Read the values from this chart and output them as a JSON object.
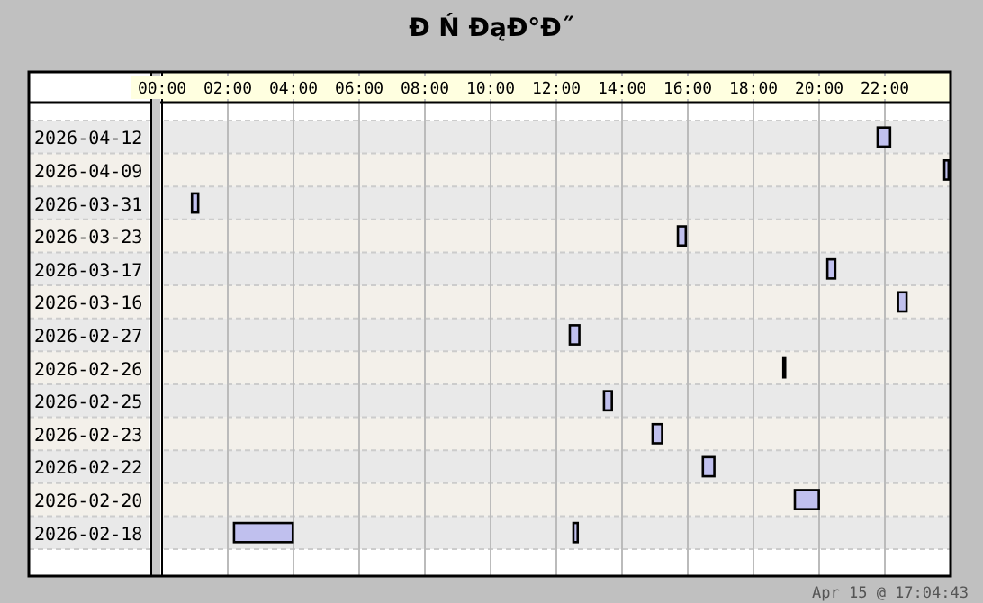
{
  "chart_data": {
    "type": "bar",
    "orientation": "horizontal",
    "title": "Ð Ń ÐąÐ°Ð˝",
    "categories": [
      "2026-04-12",
      "2026-04-09",
      "2026-03-31",
      "2026-03-23",
      "2026-03-17",
      "2026-03-16",
      "2026-02-27",
      "2026-02-26",
      "2026-02-25",
      "2026-02-23",
      "2026-02-22",
      "2026-02-20",
      "2026-02-18"
    ],
    "series": [
      {
        "color": "#c0c0ee",
        "base": [
          21.78,
          23.81,
          0.91,
          15.7,
          20.25,
          22.4,
          12.41,
          18.91,
          13.45,
          14.93,
          16.46,
          19.26,
          2.19
        ],
        "values": [
          0.38,
          0.13,
          0.19,
          0.24,
          0.24,
          0.26,
          0.29,
          0.04,
          0.24,
          0.29,
          0.35,
          0.73,
          1.79
        ]
      },
      {
        "color": "#c0c0ee",
        "base": [
          null,
          null,
          null,
          null,
          null,
          null,
          null,
          null,
          null,
          null,
          null,
          null,
          12.52
        ],
        "values": [
          null,
          null,
          null,
          null,
          null,
          null,
          null,
          null,
          null,
          null,
          null,
          null,
          0.13
        ]
      }
    ],
    "xlim": [
      0,
      24
    ],
    "xticks": [
      {
        "value": 0,
        "label": "00:00"
      },
      {
        "value": 2,
        "label": "02:00"
      },
      {
        "value": 4,
        "label": "04:00"
      },
      {
        "value": 6,
        "label": "06:00"
      },
      {
        "value": 8,
        "label": "08:00"
      },
      {
        "value": 10,
        "label": "10:00"
      },
      {
        "value": 12,
        "label": "12:00"
      },
      {
        "value": 14,
        "label": "14:00"
      },
      {
        "value": 16,
        "label": "16:00"
      },
      {
        "value": 18,
        "label": "18:00"
      },
      {
        "value": 20,
        "label": "20:00"
      },
      {
        "value": 22,
        "label": "22:00"
      }
    ],
    "grid": "x",
    "annotations": [
      "Apr 15 @ 17:04:43"
    ]
  }
}
